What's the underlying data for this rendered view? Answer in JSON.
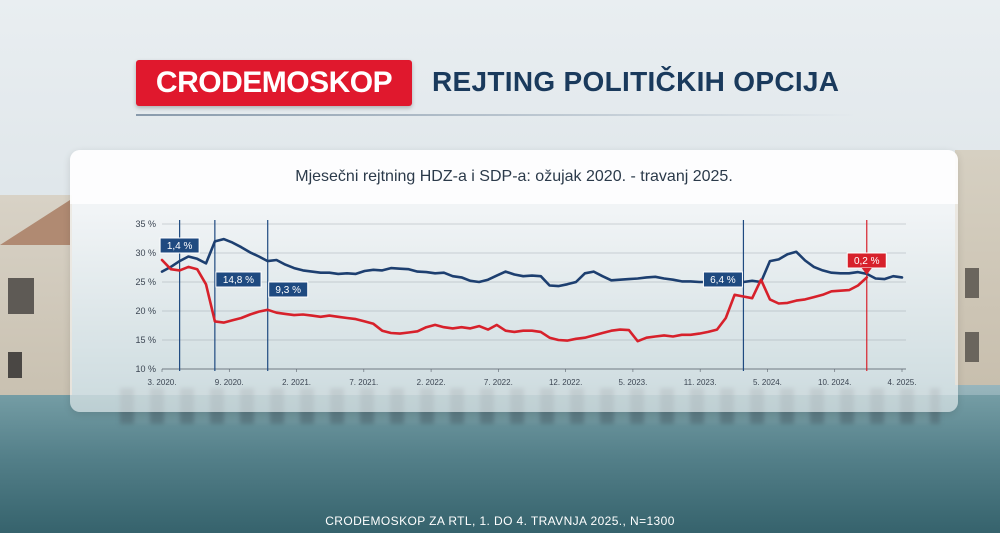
{
  "header": {
    "brand": "CRODEMOSKOP",
    "title": "REJTING POLITIČKIH OPCIJA"
  },
  "chart": {
    "title": "Mjesečni rejtning HDZ-a i SDP-a: ožujak 2020. - travanj 2025."
  },
  "footer": {
    "text": "CRODEMOSKOP ZA RTL, 1. DO 4. TRAVNJA 2025., N=1300"
  },
  "colors": {
    "brand_red": "#e0182d",
    "title_blue": "#1a3a5c",
    "hdz_series": "#1d3f70",
    "sdp_series": "#d7212b",
    "marker_blue": "#1f4a80",
    "marker_red": "#d7212b"
  },
  "chart_data": {
    "type": "line",
    "title": "Mjesečni rejtning HDZ-a i SDP-a: ožujak 2020. - travanj 2025.",
    "x_tick_labels": [
      "3. 2020.",
      "9. 2020.",
      "2. 2021.",
      "7. 2021.",
      "2. 2022.",
      "7. 2022.",
      "12. 2022.",
      "5. 2023.",
      "11. 2023.",
      "5. 2024.",
      "10. 2024.",
      "4. 2025."
    ],
    "y_tick_labels": [
      "35 %",
      "30 %",
      "25 %",
      "20 %",
      "15 %",
      "10 %"
    ],
    "ylim": [
      10,
      35
    ],
    "grid": true,
    "series": [
      {
        "color": "#1d3f70",
        "points": [
          [
            0,
            26.8
          ],
          [
            1,
            27.6
          ],
          [
            2,
            28.6
          ],
          [
            3,
            29.4
          ],
          [
            4,
            29.0
          ],
          [
            5,
            28.2
          ],
          [
            6,
            32.0
          ],
          [
            7,
            32.4
          ],
          [
            8,
            31.8
          ],
          [
            9,
            31.0
          ],
          [
            10,
            30.1
          ],
          [
            11,
            29.4
          ],
          [
            12,
            28.6
          ],
          [
            13,
            28.8
          ],
          [
            14,
            28.0
          ],
          [
            15,
            27.4
          ],
          [
            16,
            27.0
          ],
          [
            17,
            26.8
          ],
          [
            18,
            26.6
          ],
          [
            19,
            26.6
          ],
          [
            20,
            26.4
          ],
          [
            21,
            26.5
          ],
          [
            22,
            26.4
          ],
          [
            23,
            26.9
          ],
          [
            24,
            27.1
          ],
          [
            25,
            27.0
          ],
          [
            26,
            27.4
          ],
          [
            27,
            27.3
          ],
          [
            28,
            27.2
          ],
          [
            29,
            26.8
          ],
          [
            30,
            26.7
          ],
          [
            31,
            26.5
          ],
          [
            32,
            26.6
          ],
          [
            33,
            26.0
          ],
          [
            34,
            25.8
          ],
          [
            35,
            25.2
          ],
          [
            36,
            25.0
          ],
          [
            37,
            25.4
          ],
          [
            38,
            26.1
          ],
          [
            39,
            26.8
          ],
          [
            40,
            26.3
          ],
          [
            41,
            26.0
          ],
          [
            42,
            26.1
          ],
          [
            43,
            26.0
          ],
          [
            44,
            24.4
          ],
          [
            45,
            24.3
          ],
          [
            46,
            24.6
          ],
          [
            47,
            25.0
          ],
          [
            48,
            26.5
          ],
          [
            49,
            26.8
          ],
          [
            50,
            26.0
          ],
          [
            51,
            25.3
          ],
          [
            52,
            25.4
          ],
          [
            53,
            25.5
          ],
          [
            54,
            25.6
          ],
          [
            55,
            25.8
          ],
          [
            56,
            25.9
          ],
          [
            57,
            25.6
          ],
          [
            58,
            25.4
          ],
          [
            59,
            25.1
          ],
          [
            60,
            25.1
          ],
          [
            61,
            25.0
          ],
          [
            62,
            25.0
          ],
          [
            63,
            25.1
          ],
          [
            64,
            25.0
          ],
          [
            65,
            24.8
          ],
          [
            66,
            25.0
          ],
          [
            67,
            25.2
          ],
          [
            68,
            25.0
          ],
          [
            69,
            28.6
          ],
          [
            70,
            28.9
          ],
          [
            71,
            29.8
          ],
          [
            72,
            30.2
          ],
          [
            73,
            28.7
          ],
          [
            74,
            27.6
          ],
          [
            75,
            27.0
          ],
          [
            76,
            26.6
          ],
          [
            77,
            26.5
          ],
          [
            78,
            26.5
          ],
          [
            79,
            26.7
          ],
          [
            80,
            26.4
          ],
          [
            81,
            25.6
          ],
          [
            82,
            25.5
          ],
          [
            83,
            26.0
          ],
          [
            84,
            25.8
          ]
        ]
      },
      {
        "color": "#d7212b",
        "points": [
          [
            0,
            28.8
          ],
          [
            1,
            27.2
          ],
          [
            2,
            27.0
          ],
          [
            3,
            27.6
          ],
          [
            4,
            27.2
          ],
          [
            5,
            24.6
          ],
          [
            6,
            18.2
          ],
          [
            7,
            18.0
          ],
          [
            8,
            18.4
          ],
          [
            9,
            18.8
          ],
          [
            10,
            19.4
          ],
          [
            11,
            19.9
          ],
          [
            12,
            20.2
          ],
          [
            13,
            19.7
          ],
          [
            14,
            19.5
          ],
          [
            15,
            19.3
          ],
          [
            16,
            19.4
          ],
          [
            17,
            19.2
          ],
          [
            18,
            19.0
          ],
          [
            19,
            19.2
          ],
          [
            20,
            19.0
          ],
          [
            21,
            18.8
          ],
          [
            22,
            18.6
          ],
          [
            23,
            18.2
          ],
          [
            24,
            17.8
          ],
          [
            25,
            16.6
          ],
          [
            26,
            16.2
          ],
          [
            27,
            16.1
          ],
          [
            28,
            16.3
          ],
          [
            29,
            16.5
          ],
          [
            30,
            17.2
          ],
          [
            31,
            17.6
          ],
          [
            32,
            17.2
          ],
          [
            33,
            17.0
          ],
          [
            34,
            17.2
          ],
          [
            35,
            17.0
          ],
          [
            36,
            17.4
          ],
          [
            37,
            16.8
          ],
          [
            38,
            17.6
          ],
          [
            39,
            16.6
          ],
          [
            40,
            16.4
          ],
          [
            41,
            16.6
          ],
          [
            42,
            16.6
          ],
          [
            43,
            16.4
          ],
          [
            44,
            15.4
          ],
          [
            45,
            15.0
          ],
          [
            46,
            14.9
          ],
          [
            47,
            15.2
          ],
          [
            48,
            15.4
          ],
          [
            49,
            15.8
          ],
          [
            50,
            16.2
          ],
          [
            51,
            16.6
          ],
          [
            52,
            16.8
          ],
          [
            53,
            16.7
          ],
          [
            54,
            14.8
          ],
          [
            55,
            15.4
          ],
          [
            56,
            15.6
          ],
          [
            57,
            15.8
          ],
          [
            58,
            15.6
          ],
          [
            59,
            15.9
          ],
          [
            60,
            15.9
          ],
          [
            61,
            16.1
          ],
          [
            62,
            16.4
          ],
          [
            63,
            16.8
          ],
          [
            64,
            18.8
          ],
          [
            65,
            22.8
          ],
          [
            66,
            22.5
          ],
          [
            67,
            22.2
          ],
          [
            68,
            25.4
          ],
          [
            69,
            22.0
          ],
          [
            70,
            21.3
          ],
          [
            71,
            21.4
          ],
          [
            72,
            21.8
          ],
          [
            73,
            22.0
          ],
          [
            74,
            22.4
          ],
          [
            75,
            22.8
          ],
          [
            76,
            23.4
          ],
          [
            77,
            23.5
          ],
          [
            78,
            23.6
          ],
          [
            79,
            24.4
          ],
          [
            80,
            25.8
          ]
        ]
      }
    ],
    "annotations": [
      {
        "label": "1,4 %",
        "x": 2,
        "color": "#1f4a80"
      },
      {
        "label": "14,8 %",
        "x": 6,
        "color": "#1f4a80"
      },
      {
        "label": "9,3 %",
        "x": 12,
        "color": "#1f4a80"
      },
      {
        "label": "6,4 %",
        "x": 66,
        "color": "#1f4a80"
      },
      {
        "label": "0,2 %",
        "x": 80,
        "color": "#d7212b"
      }
    ]
  }
}
